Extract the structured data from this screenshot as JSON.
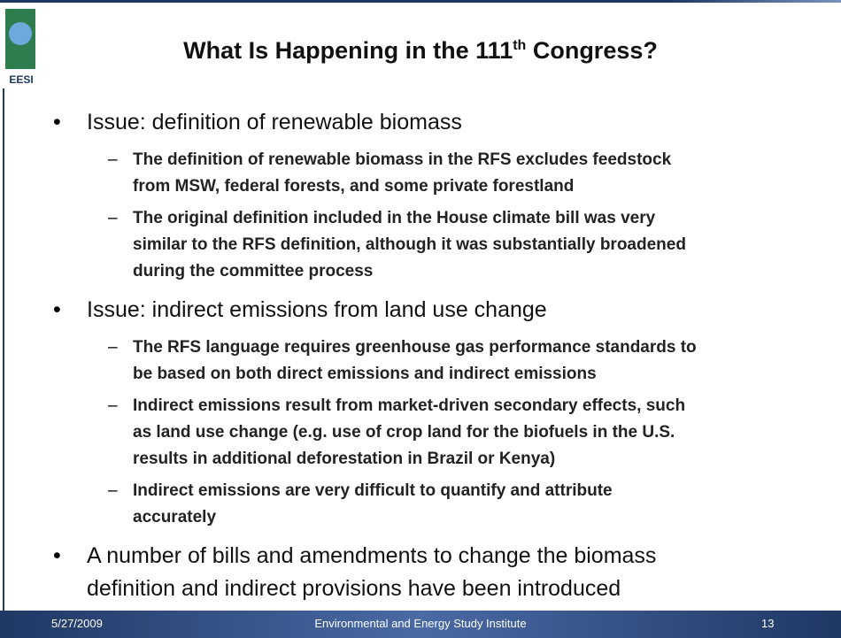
{
  "logo_text": "EESI",
  "title": {
    "main": "What Is Happening in the 111",
    "sup": "th",
    "rest": " Congress?"
  },
  "bullets": [
    {
      "text": "Issue: definition of renewable biomass",
      "subs": [
        [
          "The definition of renewable biomass in the RFS excludes feedstock",
          "from MSW, federal forests, and some private forestland"
        ],
        [
          "The original definition included in the House climate bill was very",
          "similar to the RFS definition, although it was substantially broadened",
          "during the committee process"
        ]
      ]
    },
    {
      "text": "Issue: indirect emissions from land use change",
      "subs": [
        [
          "The RFS language requires greenhouse gas performance standards to",
          "be based on both direct emissions and indirect emissions"
        ],
        [
          "Indirect emissions result from market-driven secondary effects, such",
          "as land use change (e.g. use of crop land for the biofuels in the U.S.",
          "results in additional deforestation in Brazil or Kenya)"
        ],
        [
          "Indirect emissions are very difficult to quantify and attribute",
          "accurately"
        ]
      ]
    },
    {
      "lines": [
        "A number of bills and amendments to change the biomass",
        "definition and indirect provisions have been introduced"
      ]
    }
  ],
  "footer": {
    "date": "5/27/2009",
    "center": "Environmental and Energy Study Institute",
    "page": "13"
  }
}
